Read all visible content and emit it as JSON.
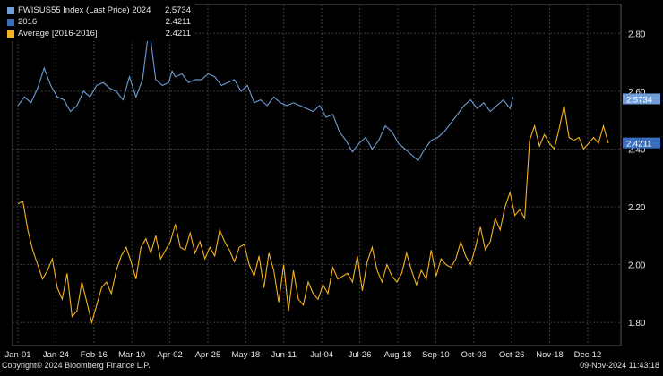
{
  "chart_data": {
    "type": "line",
    "legend": [
      {
        "name": "FWISUS55 Index (Last Price) 2024",
        "value": "2.5734",
        "color": "#6f9ed9"
      },
      {
        "name": "2016",
        "value": "2.4211",
        "color": "#3a6fbf"
      },
      {
        "name": "Average  [2016-2016]",
        "value": "2.4211",
        "color": "#f5b21f"
      }
    ],
    "legend_position": "top-left",
    "y_axis": {
      "side": "right",
      "ticks": [
        "1.80",
        "2.00",
        "2.20",
        "2.40",
        "2.60",
        "2.80"
      ],
      "ylim": [
        1.72,
        2.9
      ]
    },
    "x_axis": {
      "ticks": [
        "Jan-01",
        "Jan-24",
        "Feb-16",
        "Mar-10",
        "Apr-02",
        "Apr-25",
        "May-18",
        "Jun-11",
        "Jul-04",
        "Jul-26",
        "Aug-18",
        "Sep-10",
        "Oct-03",
        "Oct-26",
        "Nov-18",
        "Dec-12"
      ]
    },
    "last_value_labels": [
      {
        "text": "2.5734",
        "value": 2.5734,
        "color": "#6f9ed9"
      },
      {
        "text": "2.4211",
        "value": 2.4211,
        "color": "#3a6fbf"
      }
    ],
    "grid": true,
    "series": [
      {
        "name": "FWISUS55 Index (Last Price) 2024",
        "color": "#6f9ed9",
        "x": [
          0,
          4,
          8,
          12,
          16,
          20,
          24,
          28,
          32,
          36,
          40,
          44,
          48,
          52,
          56,
          60,
          64,
          68,
          72,
          76,
          80,
          84,
          88,
          92,
          94,
          96,
          100,
          104,
          108,
          112,
          116,
          120,
          124,
          128,
          132,
          136,
          140,
          144,
          148,
          152,
          156,
          160,
          164,
          168,
          172,
          176,
          180,
          184,
          188,
          192,
          196,
          200,
          204,
          208,
          212,
          216,
          220,
          224,
          228,
          232,
          236,
          240,
          244,
          248,
          252,
          256,
          260,
          264,
          268,
          272,
          276,
          280,
          284,
          288,
          292,
          296,
          300,
          302
        ],
        "values": [
          2.55,
          2.58,
          2.56,
          2.61,
          2.68,
          2.62,
          2.58,
          2.57,
          2.53,
          2.55,
          2.6,
          2.58,
          2.62,
          2.63,
          2.61,
          2.6,
          2.57,
          2.65,
          2.58,
          2.64,
          2.82,
          2.64,
          2.62,
          2.63,
          2.67,
          2.65,
          2.66,
          2.63,
          2.64,
          2.64,
          2.66,
          2.65,
          2.62,
          2.63,
          2.64,
          2.6,
          2.62,
          2.56,
          2.57,
          2.55,
          2.58,
          2.56,
          2.55,
          2.56,
          2.55,
          2.54,
          2.53,
          2.55,
          2.51,
          2.52,
          2.46,
          2.43,
          2.39,
          2.42,
          2.44,
          2.4,
          2.43,
          2.48,
          2.46,
          2.42,
          2.4,
          2.38,
          2.36,
          2.4,
          2.43,
          2.44,
          2.46,
          2.49,
          2.52,
          2.55,
          2.57,
          2.54,
          2.56,
          2.53,
          2.55,
          2.57,
          2.54,
          2.58
        ]
      },
      {
        "name": "Average  [2016-2016]",
        "color": "#f5b21f",
        "x": [
          0,
          3,
          6,
          9,
          12,
          15,
          18,
          21,
          24,
          27,
          30,
          33,
          36,
          39,
          42,
          45,
          48,
          51,
          54,
          57,
          60,
          63,
          66,
          69,
          72,
          75,
          78,
          81,
          84,
          87,
          90,
          93,
          96,
          99,
          102,
          105,
          108,
          111,
          114,
          117,
          120,
          123,
          126,
          129,
          132,
          135,
          138,
          141,
          144,
          147,
          150,
          153,
          156,
          159,
          162,
          165,
          168,
          171,
          174,
          177,
          180,
          183,
          186,
          189,
          192,
          195,
          198,
          201,
          204,
          207,
          210,
          213,
          216,
          219,
          222,
          225,
          228,
          231,
          234,
          237,
          240,
          243,
          246,
          249,
          252,
          255,
          258,
          261,
          264,
          267,
          270,
          273,
          276,
          279,
          282,
          285,
          288,
          291,
          294,
          297,
          300,
          303,
          306,
          309,
          312,
          315,
          318,
          321,
          324,
          327,
          330,
          333,
          336,
          339,
          342,
          345,
          348,
          351,
          354,
          357,
          360
        ],
        "values": [
          2.21,
          2.22,
          2.12,
          2.05,
          2.0,
          1.95,
          1.98,
          2.02,
          1.92,
          1.88,
          1.97,
          1.82,
          1.84,
          1.94,
          1.87,
          1.8,
          1.86,
          1.92,
          1.94,
          1.9,
          1.98,
          2.03,
          2.06,
          2.01,
          1.95,
          2.06,
          2.09,
          2.04,
          2.1,
          2.02,
          2.05,
          2.08,
          2.14,
          2.06,
          2.05,
          2.11,
          2.04,
          2.08,
          2.02,
          2.06,
          2.03,
          2.12,
          2.08,
          2.05,
          2.01,
          2.06,
          2.07,
          2.0,
          1.96,
          2.03,
          1.92,
          2.04,
          1.98,
          1.87,
          2.0,
          1.84,
          1.98,
          1.88,
          1.86,
          1.94,
          1.9,
          1.88,
          1.93,
          1.9,
          1.99,
          1.95,
          1.96,
          1.97,
          1.94,
          2.03,
          1.91,
          2.01,
          2.06,
          1.98,
          1.94,
          2.0,
          1.96,
          1.94,
          1.97,
          2.04,
          1.98,
          1.93,
          1.98,
          1.95,
          2.05,
          1.96,
          2.02,
          2.0,
          1.99,
          2.02,
          2.08,
          2.03,
          2.0,
          2.06,
          2.13,
          2.05,
          2.08,
          2.16,
          2.12,
          2.2,
          2.25,
          2.17,
          2.19,
          2.16,
          2.43,
          2.48,
          2.41,
          2.45,
          2.42,
          2.4,
          2.47,
          2.55,
          2.44,
          2.43,
          2.44,
          2.4,
          2.42,
          2.44,
          2.42,
          2.48,
          2.42
        ]
      }
    ]
  },
  "footer": {
    "copyright": "Copyright© 2024 Bloomberg Finance L.P.",
    "timestamp": "09-Nov-2024 11:43:18"
  }
}
